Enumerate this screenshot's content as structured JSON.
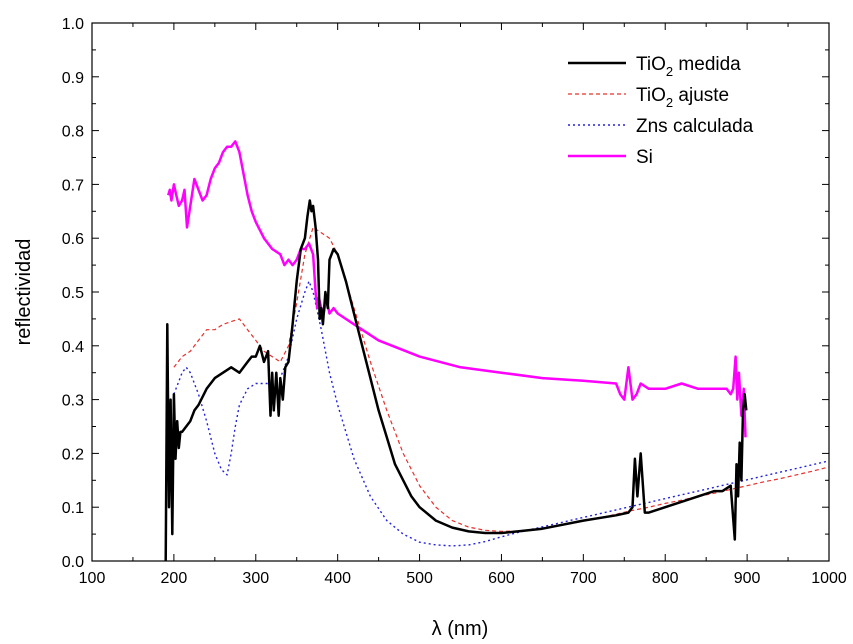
{
  "chart_data": {
    "type": "line",
    "xlabel": "λ (nm)",
    "ylabel": "reflectividad",
    "xlim": [
      100,
      1000
    ],
    "ylim": [
      0.0,
      1.0
    ],
    "x_ticks": [
      100,
      200,
      300,
      400,
      500,
      600,
      700,
      800,
      900,
      1000
    ],
    "y_ticks": [
      0.0,
      0.1,
      0.2,
      0.3,
      0.4,
      0.5,
      0.6,
      0.7,
      0.8,
      0.9,
      1.0
    ],
    "x_tick_labels": [
      "100",
      "200",
      "300",
      "400",
      "500",
      "600",
      "700",
      "800",
      "900",
      "1000"
    ],
    "y_tick_labels": [
      "0.0",
      "0.1",
      "0.2",
      "0.3",
      "0.4",
      "0.5",
      "0.6",
      "0.7",
      "0.8",
      "0.9",
      "1.0"
    ],
    "grid": false,
    "legend_position": "top-right",
    "series": [
      {
        "name": "TiO2 medida",
        "legend_main": "TiO",
        "legend_sub": "2",
        "legend_rest": " medida",
        "color": "#000000",
        "style": "solid",
        "width": 2.5,
        "x": [
          190,
          192,
          194,
          196,
          198,
          200,
          202,
          204,
          206,
          208,
          210,
          215,
          220,
          225,
          230,
          240,
          250,
          260,
          270,
          280,
          290,
          295,
          300,
          305,
          310,
          315,
          318,
          320,
          322,
          325,
          328,
          330,
          333,
          336,
          340,
          345,
          350,
          355,
          360,
          363,
          366,
          368,
          370,
          373,
          376,
          378,
          380,
          382,
          385,
          388,
          390,
          395,
          400,
          410,
          420,
          430,
          440,
          450,
          460,
          470,
          480,
          490,
          500,
          520,
          540,
          560,
          580,
          600,
          620,
          650,
          700,
          740,
          755,
          760,
          763,
          766,
          770,
          775,
          780,
          800,
          820,
          840,
          860,
          870,
          880,
          885,
          887,
          889,
          891,
          893,
          895,
          897,
          899
        ],
        "y": [
          0.0,
          0.44,
          0.1,
          0.3,
          0.05,
          0.31,
          0.19,
          0.26,
          0.21,
          0.24,
          0.24,
          0.25,
          0.26,
          0.28,
          0.29,
          0.32,
          0.34,
          0.35,
          0.36,
          0.35,
          0.37,
          0.38,
          0.38,
          0.4,
          0.37,
          0.39,
          0.27,
          0.35,
          0.28,
          0.35,
          0.27,
          0.34,
          0.3,
          0.36,
          0.37,
          0.44,
          0.52,
          0.58,
          0.6,
          0.64,
          0.67,
          0.65,
          0.66,
          0.62,
          0.56,
          0.45,
          0.47,
          0.44,
          0.5,
          0.47,
          0.56,
          0.58,
          0.57,
          0.52,
          0.46,
          0.4,
          0.34,
          0.28,
          0.23,
          0.18,
          0.15,
          0.12,
          0.1,
          0.075,
          0.062,
          0.055,
          0.052,
          0.052,
          0.055,
          0.06,
          0.075,
          0.085,
          0.09,
          0.1,
          0.19,
          0.12,
          0.2,
          0.09,
          0.09,
          0.1,
          0.11,
          0.12,
          0.13,
          0.13,
          0.14,
          0.04,
          0.18,
          0.12,
          0.22,
          0.15,
          0.28,
          0.31,
          0.28
        ]
      },
      {
        "name": "TiO2 ajuste",
        "legend_main": "TiO",
        "legend_sub": "2",
        "legend_rest": " ajuste",
        "color": "#e8302c",
        "style": "dashed",
        "width": 1.2,
        "x": [
          200,
          210,
          220,
          230,
          240,
          250,
          260,
          270,
          280,
          290,
          300,
          310,
          320,
          330,
          340,
          350,
          360,
          370,
          380,
          390,
          400,
          420,
          440,
          460,
          480,
          500,
          520,
          540,
          560,
          580,
          600,
          620,
          640,
          660,
          680,
          700,
          720,
          740,
          760,
          780,
          800,
          820,
          840,
          860,
          880,
          900,
          920,
          940,
          960,
          980,
          1000
        ],
        "y": [
          0.36,
          0.38,
          0.39,
          0.41,
          0.43,
          0.43,
          0.44,
          0.445,
          0.45,
          0.43,
          0.41,
          0.39,
          0.38,
          0.37,
          0.4,
          0.48,
          0.57,
          0.62,
          0.61,
          0.6,
          0.57,
          0.47,
          0.37,
          0.28,
          0.2,
          0.14,
          0.1,
          0.075,
          0.063,
          0.057,
          0.055,
          0.056,
          0.059,
          0.063,
          0.068,
          0.074,
          0.08,
          0.087,
          0.094,
          0.1,
          0.107,
          0.113,
          0.12,
          0.126,
          0.133,
          0.14,
          0.147,
          0.153,
          0.16,
          0.167,
          0.175
        ]
      },
      {
        "name": "Zns calculada",
        "legend_main": "Zns calculada",
        "legend_sub": "",
        "legend_rest": "",
        "color": "#2222dd",
        "style": "dotted",
        "width": 1.4,
        "x": [
          200,
          205,
          210,
          215,
          220,
          225,
          230,
          240,
          250,
          258,
          265,
          270,
          275,
          280,
          290,
          300,
          310,
          320,
          330,
          340,
          350,
          360,
          365,
          370,
          380,
          390,
          400,
          420,
          440,
          460,
          480,
          500,
          520,
          540,
          560,
          580,
          600,
          620,
          640,
          660,
          680,
          700,
          720,
          740,
          760,
          780,
          800,
          820,
          840,
          860,
          880,
          900,
          920,
          940,
          960,
          980,
          1000
        ],
        "y": [
          0.31,
          0.33,
          0.35,
          0.36,
          0.35,
          0.33,
          0.31,
          0.26,
          0.2,
          0.17,
          0.16,
          0.2,
          0.25,
          0.29,
          0.32,
          0.33,
          0.33,
          0.33,
          0.34,
          0.38,
          0.45,
          0.5,
          0.52,
          0.5,
          0.43,
          0.35,
          0.29,
          0.19,
          0.12,
          0.075,
          0.05,
          0.035,
          0.03,
          0.028,
          0.03,
          0.036,
          0.045,
          0.053,
          0.06,
          0.067,
          0.074,
          0.081,
          0.088,
          0.095,
          0.102,
          0.109,
          0.116,
          0.123,
          0.13,
          0.137,
          0.144,
          0.151,
          0.158,
          0.165,
          0.172,
          0.179,
          0.186
        ]
      },
      {
        "name": "Si",
        "legend_main": "Si",
        "legend_sub": "",
        "legend_rest": "",
        "color": "#ff00ff",
        "style": "solid",
        "width": 2.5,
        "x": [
          193,
          195,
          197,
          200,
          203,
          206,
          210,
          213,
          216,
          220,
          225,
          230,
          235,
          240,
          245,
          250,
          255,
          260,
          265,
          270,
          275,
          280,
          285,
          290,
          295,
          300,
          310,
          320,
          330,
          335,
          340,
          345,
          350,
          355,
          360,
          365,
          370,
          373,
          375,
          377,
          380,
          383,
          386,
          390,
          395,
          400,
          420,
          450,
          500,
          550,
          600,
          650,
          700,
          740,
          745,
          750,
          755,
          760,
          765,
          770,
          780,
          800,
          820,
          840,
          860,
          875,
          880,
          883,
          886,
          888,
          890,
          893,
          896,
          898
        ],
        "y": [
          0.68,
          0.69,
          0.67,
          0.7,
          0.68,
          0.66,
          0.67,
          0.69,
          0.62,
          0.66,
          0.71,
          0.69,
          0.67,
          0.68,
          0.71,
          0.73,
          0.74,
          0.76,
          0.77,
          0.77,
          0.78,
          0.76,
          0.72,
          0.68,
          0.65,
          0.63,
          0.6,
          0.58,
          0.57,
          0.55,
          0.56,
          0.55,
          0.56,
          0.58,
          0.58,
          0.59,
          0.57,
          0.5,
          0.47,
          0.49,
          0.47,
          0.46,
          0.49,
          0.46,
          0.47,
          0.46,
          0.44,
          0.41,
          0.38,
          0.36,
          0.35,
          0.34,
          0.335,
          0.33,
          0.31,
          0.3,
          0.36,
          0.3,
          0.31,
          0.33,
          0.32,
          0.32,
          0.33,
          0.32,
          0.32,
          0.32,
          0.31,
          0.32,
          0.38,
          0.3,
          0.35,
          0.27,
          0.32,
          0.23
        ]
      }
    ]
  }
}
